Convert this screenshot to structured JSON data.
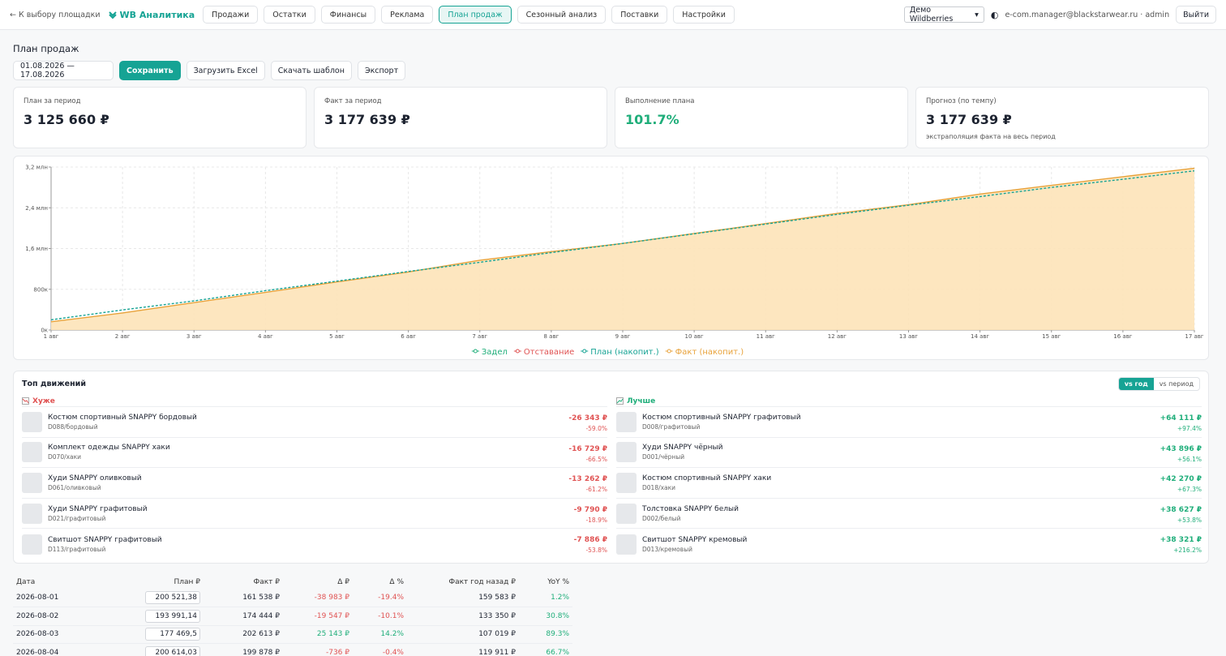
{
  "nav": {
    "back": "← К выбору площадки",
    "brand": "WB Аналитика",
    "tabs": [
      "Продажи",
      "Остатки",
      "Финансы",
      "Реклама",
      "План продаж",
      "Сезонный анализ",
      "Поставки",
      "Настройки"
    ],
    "active_tab": 4,
    "shop": "Демо Wildberries",
    "user": "e-com.manager@blackstarwear.ru · admin",
    "logout": "Выйти"
  },
  "page_title": "План продаж",
  "toolbar": {
    "period": "01.08.2026 — 17.08.2026",
    "buttons": [
      "Сохранить",
      "Загрузить Excel",
      "Скачать шаблон",
      "Экспорт"
    ]
  },
  "kpis": [
    {
      "label": "План за период",
      "value": "3 125 660 ₽"
    },
    {
      "label": "Факт за период",
      "value": "3 177 639 ₽"
    },
    {
      "label": "Выполнение плана",
      "value": "101.7%",
      "color": "#1fae7a"
    },
    {
      "label": "Прогноз (по темпу)",
      "value": "3 177 639 ₽",
      "note": "экстраполяция факта на весь период"
    }
  ],
  "chart_data": {
    "type": "line",
    "categories": [
      "1 авг",
      "2 авг",
      "3 авг",
      "4 авг",
      "5 авг",
      "6 авг",
      "7 авг",
      "8 авг",
      "9 авг",
      "10 авг",
      "11 авг",
      "12 авг",
      "13 авг",
      "14 авг",
      "15 авг",
      "16 авг",
      "17 авг"
    ],
    "ylim": [
      0,
      3200000
    ],
    "yticks": [
      {
        "value": 0,
        "label": "0к"
      },
      {
        "value": 800000,
        "label": "800к"
      },
      {
        "value": 1600000,
        "label": "1,6 млн"
      },
      {
        "value": 2400000,
        "label": "2,4 млн"
      },
      {
        "value": 3200000,
        "label": "3,2 млн"
      }
    ],
    "grid": true,
    "series": [
      {
        "name": "Задел",
        "color": "#1fae7a"
      },
      {
        "name": "Отставание",
        "color": "#e05353"
      },
      {
        "name": "План (накопит.)",
        "color": "#16a394",
        "dashed": true,
        "values": [
          200521,
          394513,
          571982,
          772596,
          960000,
          1150000,
          1330000,
          1520000,
          1700000,
          1890000,
          2080000,
          2270000,
          2450000,
          2620000,
          2800000,
          2960000,
          3125660
        ]
      },
      {
        "name": "Факт (накопит.)",
        "color": "#e8a23a",
        "fill": "#fde3b8",
        "values": [
          161538,
          335982,
          538595,
          738473,
          945000,
          1140000,
          1370000,
          1540000,
          1700000,
          1895000,
          2090000,
          2290000,
          2460000,
          2670000,
          2840000,
          3010000,
          3177639
        ]
      }
    ]
  },
  "movements": {
    "title": "Топ движений",
    "toggle": [
      "vs год",
      "vs период"
    ],
    "toggle_active": 0,
    "worse": {
      "title": "Хуже",
      "items": [
        {
          "name": "Костюм спортивный SNAPPY бордовый",
          "sku": "D088/бордовый",
          "delta": "-26 343 ₽",
          "pct": "-59.0%"
        },
        {
          "name": "Комплект одежды SNAPPY хаки",
          "sku": "D070/хаки",
          "delta": "-16 729 ₽",
          "pct": "-66.5%"
        },
        {
          "name": "Худи SNAPPY оливковый",
          "sku": "D061/оливковый",
          "delta": "-13 262 ₽",
          "pct": "-61.2%"
        },
        {
          "name": "Худи SNAPPY графитовый",
          "sku": "D021/графитовый",
          "delta": "-9 790 ₽",
          "pct": "-18.9%"
        },
        {
          "name": "Свитшот SNAPPY графитовый",
          "sku": "D113/графитовый",
          "delta": "-7 886 ₽",
          "pct": "-53.8%"
        }
      ]
    },
    "better": {
      "title": "Лучше",
      "items": [
        {
          "name": "Костюм спортивный SNAPPY графитовый",
          "sku": "D008/графитовый",
          "delta": "+64 111 ₽",
          "pct": "+97.4%"
        },
        {
          "name": "Худи SNAPPY чёрный",
          "sku": "D001/чёрный",
          "delta": "+43 896 ₽",
          "pct": "+56.1%"
        },
        {
          "name": "Костюм спортивный SNAPPY хаки",
          "sku": "D018/хаки",
          "delta": "+42 270 ₽",
          "pct": "+67.3%"
        },
        {
          "name": "Толстовка SNAPPY белый",
          "sku": "D002/белый",
          "delta": "+38 627 ₽",
          "pct": "+53.8%"
        },
        {
          "name": "Свитшот SNAPPY кремовый",
          "sku": "D013/кремовый",
          "delta": "+38 321 ₽",
          "pct": "+216.2%"
        }
      ]
    }
  },
  "table": {
    "columns": [
      "Дата",
      "План ₽",
      "Факт ₽",
      "Δ ₽",
      "Δ %",
      "Факт год назад ₽",
      "YoY %"
    ],
    "rows": [
      [
        "2026-08-01",
        "200 521,38",
        "161 538 ₽",
        "-38 983 ₽",
        "-19.4%",
        "159 583 ₽",
        "1.2%"
      ],
      [
        "2026-08-02",
        "193 991,14",
        "174 444 ₽",
        "-19 547 ₽",
        "-10.1%",
        "133 350 ₽",
        "30.8%"
      ],
      [
        "2026-08-03",
        "177 469,5",
        "202 613 ₽",
        "25 143 ₽",
        "14.2%",
        "107 019 ₽",
        "89.3%"
      ],
      [
        "2026-08-04",
        "200 614,03",
        "199 878 ₽",
        "-736 ₽",
        "-0.4%",
        "119 911 ₽",
        "66.7%"
      ]
    ]
  }
}
